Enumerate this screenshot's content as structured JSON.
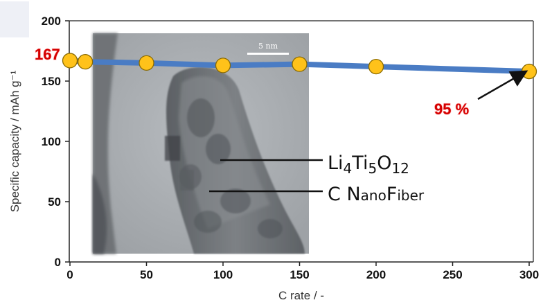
{
  "chart_data": {
    "type": "line",
    "x": [
      0,
      10,
      50,
      100,
      150,
      200,
      300
    ],
    "series": [
      {
        "values": [
          167,
          166,
          165,
          163,
          164,
          162,
          158
        ]
      }
    ],
    "xlabel": "C rate / -",
    "ylabel": "Specific capacity / mAh g⁻¹",
    "xlim": [
      -2,
      305
    ],
    "ylim": [
      0,
      200
    ],
    "xticks": [
      "0",
      "50",
      "100",
      "150",
      "200",
      "250",
      "300"
    ],
    "yticks": [
      "0",
      "50",
      "100",
      "150",
      "200"
    ],
    "grid": false,
    "line_color": "#4a7cc4",
    "marker_color": "#ffc21a",
    "marker_edge_color": "#8a6a00",
    "annotations": {
      "start_value": "167",
      "retention": "95 %",
      "scale_bar": "5 nm",
      "label_lto": {
        "base1": "Li",
        "sub1": "4",
        "base2": "Ti",
        "sub2": "5",
        "base3": "O",
        "sub3": "12"
      },
      "label_cnf": {
        "c": "C ",
        "n": "N",
        "ano": "ano",
        "f": "F",
        "iber": "iber"
      }
    }
  }
}
